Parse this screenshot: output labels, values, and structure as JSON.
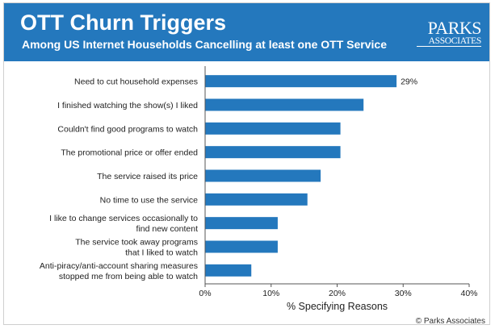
{
  "header": {
    "title": "OTT Churn Triggers",
    "subtitle": "Among US Internet Households Cancelling at least one OTT Service",
    "logo_line1": "PARKS",
    "logo_line2": "ASSOCIATES"
  },
  "footer": {
    "copyright": "© Parks Associates"
  },
  "colors": {
    "banner": "#2478bd",
    "bar": "#2478bd",
    "text": "#222222"
  },
  "chart_data": {
    "type": "bar",
    "orientation": "horizontal",
    "categories": [
      [
        "Need to cut household expenses"
      ],
      [
        "I finished watching the show(s) I liked"
      ],
      [
        "Couldn't find good programs to watch"
      ],
      [
        "The promotional price or offer ended"
      ],
      [
        "The service raised its price"
      ],
      [
        "No time to use the service"
      ],
      [
        "I like to change services occasionally to",
        "find new content"
      ],
      [
        "The service took away programs",
        "that I liked to watch"
      ],
      [
        "Anti-piracy/anti-account sharing measures",
        "stopped me from being able to watch"
      ]
    ],
    "values": [
      29,
      24,
      20.5,
      20.5,
      17.5,
      15.5,
      11,
      11,
      7
    ],
    "data_labels": [
      "29%",
      "",
      "",
      "",
      "",
      "",
      "",
      "",
      ""
    ],
    "xlabel": "% Specifying Reasons",
    "xlim": [
      0,
      40
    ],
    "xticks": [
      0,
      10,
      20,
      30,
      40
    ],
    "xtick_labels": [
      "0%",
      "10%",
      "20%",
      "30%",
      "40%"
    ],
    "grid": false,
    "legend": "none"
  }
}
